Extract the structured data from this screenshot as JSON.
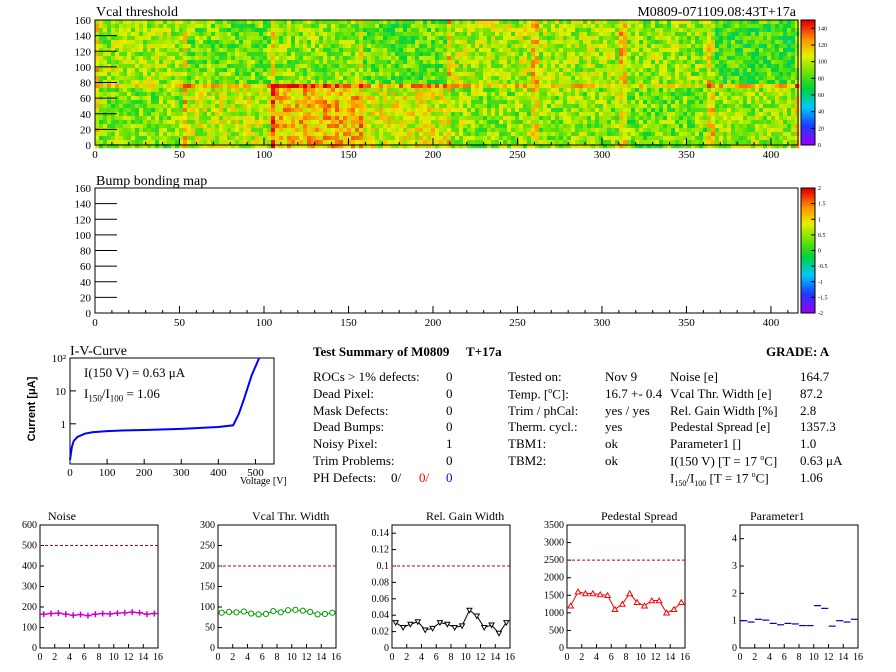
{
  "header": {
    "module_id": "M0809-071109.08:43T+17a"
  },
  "colors": {
    "ok": "#000000",
    "red": "#ff0000",
    "blue": "#0000ff",
    "curve_blue": "#0000ff",
    "noise": "#cc00cc",
    "vcal": "#009900",
    "gain": "#000000",
    "pedestal": "#ff0000",
    "param1": "#0000cc"
  },
  "maps": [
    {
      "title": "Vcal threshold",
      "xticks": [
        "0",
        "50",
        "100",
        "150",
        "200",
        "250",
        "300",
        "350",
        "400"
      ],
      "yticks": [
        "0",
        "20",
        "40",
        "60",
        "80",
        "100",
        "120",
        "140",
        "160"
      ],
      "xlim": [
        0,
        416
      ],
      "ylim": [
        0,
        160
      ],
      "zticks": [
        "0",
        "20",
        "40",
        "60",
        "80",
        "100",
        "120",
        "140"
      ],
      "zlim": [
        0,
        150
      ],
      "roc_base": [
        [
          95,
          88,
          92,
          85,
          98,
          96,
          93,
          80
        ],
        [
          90,
          100,
          118,
          105,
          92,
          92,
          88,
          94
        ]
      ]
    },
    {
      "title": "Bump bonding map",
      "xticks": [
        "0",
        "50",
        "100",
        "150",
        "200",
        "250",
        "300",
        "350",
        "400"
      ],
      "yticks": [
        "0",
        "20",
        "40",
        "60",
        "80",
        "100",
        "120",
        "140",
        "160"
      ],
      "xlim": [
        0,
        416
      ],
      "ylim": [
        0,
        160
      ],
      "zticks": [
        "2",
        "1.5",
        "1",
        "0.5",
        "0",
        "-0.5",
        "-1",
        "-1.5",
        "-2"
      ],
      "zlim": [
        -2,
        2
      ]
    }
  ],
  "iv": {
    "title": "I-V-Curve",
    "ylabel": "Current [μA]",
    "xlabel": "Voltage [V]",
    "xticks": [
      "0",
      "100",
      "200",
      "300",
      "400",
      "500"
    ],
    "yticks": [
      "1",
      "10",
      "10²"
    ],
    "i150": "I(150 V) = 0.63 μA",
    "ratio_label": "I",
    "ratio_sub1": "150",
    "ratio_slash": "/I",
    "ratio_sub2": "100",
    "ratio_val": " =  1.06",
    "chart_data": {
      "type": "line",
      "x": [
        0,
        5,
        10,
        20,
        40,
        60,
        100,
        150,
        200,
        300,
        400,
        440,
        455,
        470,
        490,
        510
      ],
      "y": [
        0.08,
        0.2,
        0.3,
        0.4,
        0.5,
        0.55,
        0.6,
        0.63,
        0.65,
        0.7,
        0.8,
        0.9,
        2,
        6,
        30,
        100
      ]
    }
  },
  "summary": {
    "title": "Test Summary of M0809",
    "suffix": "T+17a",
    "grade_label": "GRADE:  A",
    "left_rows": [
      {
        "label": "ROCs > 1% defects:",
        "value": "0"
      },
      {
        "label": "Dead Pixel:",
        "value": "0"
      },
      {
        "label": "Mask Defects:",
        "value": "0"
      },
      {
        "label": "Dead Bumps:",
        "value": "0"
      },
      {
        "label": "Noisy Pixel:",
        "value": "1"
      },
      {
        "label": "Trim Problems:",
        "value": "0"
      }
    ],
    "ph_label": "PH Defects:",
    "ph_v1": "0/",
    "ph_v2": "0/",
    "ph_v3": "0",
    "mid_rows": [
      {
        "label": "Tested on:",
        "value": "Nov 9"
      },
      {
        "label": "Temp. [",
        "sup": "o",
        "label2": "C]:",
        "value": "16.7 +- 0.4"
      },
      {
        "label": "Trim / phCal:",
        "value": "yes / yes"
      },
      {
        "label": "Therm. cycl.:",
        "value": "yes"
      },
      {
        "label": "TBM1:",
        "value": "ok"
      },
      {
        "label": "TBM2:",
        "value": "ok"
      }
    ],
    "right_rows": [
      {
        "label": "Noise [e]",
        "value": "164.7"
      },
      {
        "label": "Vcal Thr. Width [e]",
        "value": "87.2"
      },
      {
        "label": "Rel. Gain Width [%]",
        "value": "2.8"
      },
      {
        "label": "Pedestal Spread [e]",
        "value": "1357.3"
      },
      {
        "label": "Parameter1 []",
        "value": "1.0"
      },
      {
        "label": "I(150 V) [T = 17 ",
        "sup": "o",
        "label2": "C]",
        "value": "0.63 μA"
      }
    ],
    "ratio_row": {
      "label_a": "I",
      "sub1": "150",
      "label_b": "/I",
      "sub2": "100",
      "label_c": "  [T = 17 ",
      "sup": "o",
      "label_d": "C]",
      "value": "1.06"
    }
  },
  "small_charts": [
    {
      "title": "Noise",
      "type": "scatter",
      "ylim": [
        0,
        600
      ],
      "yticks": [
        "0",
        "100",
        "200",
        "300",
        "400",
        "500",
        "600"
      ],
      "ref": 500,
      "xticks": [
        "0",
        "2",
        "4",
        "6",
        "8",
        "10",
        "12",
        "14",
        "16"
      ],
      "marker": "cross",
      "x": [
        0,
        1,
        2,
        3,
        4,
        5,
        6,
        7,
        8,
        9,
        10,
        11,
        12,
        13,
        14,
        15
      ],
      "values": [
        165,
        168,
        170,
        165,
        160,
        163,
        158,
        165,
        168,
        166,
        170,
        172,
        175,
        172,
        165,
        168
      ]
    },
    {
      "title": "Vcal Thr. Width",
      "type": "scatter",
      "ylim": [
        0,
        300
      ],
      "yticks": [
        "0",
        "50",
        "100",
        "150",
        "200",
        "250",
        "300"
      ],
      "ref": 200,
      "xticks": [
        "0",
        "2",
        "4",
        "6",
        "8",
        "10",
        "12",
        "14",
        "16"
      ],
      "marker": "circle",
      "x": [
        0,
        1,
        2,
        3,
        4,
        5,
        6,
        7,
        8,
        9,
        10,
        11,
        12,
        13,
        14,
        15
      ],
      "values": [
        86,
        88,
        87,
        89,
        84,
        82,
        83,
        90,
        87,
        92,
        93,
        91,
        88,
        82,
        83,
        86
      ]
    },
    {
      "title": "Rel. Gain Width",
      "type": "line",
      "ylim": [
        0,
        0.15
      ],
      "yticks": [
        "0",
        "0.02",
        "0.04",
        "0.06",
        "0.08",
        "0.1",
        "0.12",
        "0.14"
      ],
      "ref": 0.1,
      "xticks": [
        "0",
        "2",
        "4",
        "6",
        "8",
        "10",
        "12",
        "14",
        "16"
      ],
      "marker": "tri-down",
      "x": [
        0,
        1,
        2,
        3,
        4,
        5,
        6,
        7,
        8,
        9,
        10,
        11,
        12,
        13,
        14,
        15
      ],
      "values": [
        0.031,
        0.025,
        0.029,
        0.032,
        0.022,
        0.024,
        0.031,
        0.029,
        0.025,
        0.027,
        0.046,
        0.039,
        0.025,
        0.028,
        0.018,
        0.031
      ]
    },
    {
      "title": "Pedestal Spread",
      "type": "line",
      "ylim": [
        0,
        3500
      ],
      "yticks": [
        "0",
        "500",
        "1000",
        "1500",
        "2000",
        "2500",
        "3000",
        "3500"
      ],
      "ref": 2500,
      "xticks": [
        "0",
        "2",
        "4",
        "6",
        "8",
        "10",
        "12",
        "14",
        "16"
      ],
      "marker": "tri-up",
      "x": [
        0,
        1,
        2,
        3,
        4,
        5,
        6,
        7,
        8,
        9,
        10,
        11,
        12,
        13,
        14,
        15
      ],
      "values": [
        1200,
        1600,
        1550,
        1550,
        1520,
        1500,
        1100,
        1250,
        1550,
        1300,
        1200,
        1350,
        1350,
        1000,
        1100,
        1300
      ]
    },
    {
      "title": "Parameter1",
      "type": "scatter",
      "ylim": [
        0,
        4.5
      ],
      "yticks": [
        "0",
        "1",
        "2",
        "3",
        "4"
      ],
      "ref": null,
      "xticks": [
        "0",
        "2",
        "4",
        "6",
        "8",
        "10",
        "12",
        "14",
        "16"
      ],
      "marker": "hbar",
      "x": [
        0,
        1,
        2,
        3,
        4,
        5,
        6,
        7,
        8,
        9,
        10,
        11,
        12,
        13,
        14,
        15
      ],
      "values": [
        1.0,
        0.95,
        1.05,
        1.02,
        0.9,
        0.85,
        0.9,
        0.88,
        0.82,
        0.82,
        1.55,
        1.45,
        0.8,
        1.0,
        0.95,
        1.05
      ]
    }
  ]
}
